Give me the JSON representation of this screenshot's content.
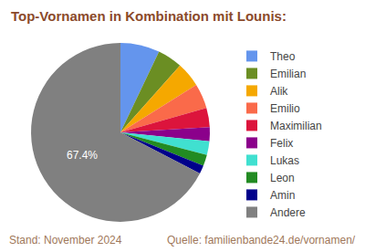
{
  "chart_data": {
    "type": "pie",
    "title": "Top-Vornamen in Kombination mit Lounis:",
    "categories": [
      "Theo",
      "Emilian",
      "Alik",
      "Emilio",
      "Maximilian",
      "Felix",
      "Lukas",
      "Leon",
      "Amin",
      "Andere"
    ],
    "values": [
      7.1,
      4.5,
      4.5,
      4.5,
      3.5,
      2.5,
      2.5,
      2.0,
      1.5,
      67.4
    ],
    "value_labels": [
      null,
      null,
      null,
      null,
      null,
      null,
      null,
      null,
      null,
      "67.4%"
    ],
    "colors": [
      "#6495ed",
      "#6b8e23",
      "#f5a800",
      "#fa6a4a",
      "#dc143c",
      "#8b008b",
      "#40e0d0",
      "#228b22",
      "#00008b",
      "#808080"
    ],
    "legend": "right",
    "annotations": [
      "Stand: November 2024",
      "Quelle: familienbande24.de/vornamen/"
    ]
  }
}
